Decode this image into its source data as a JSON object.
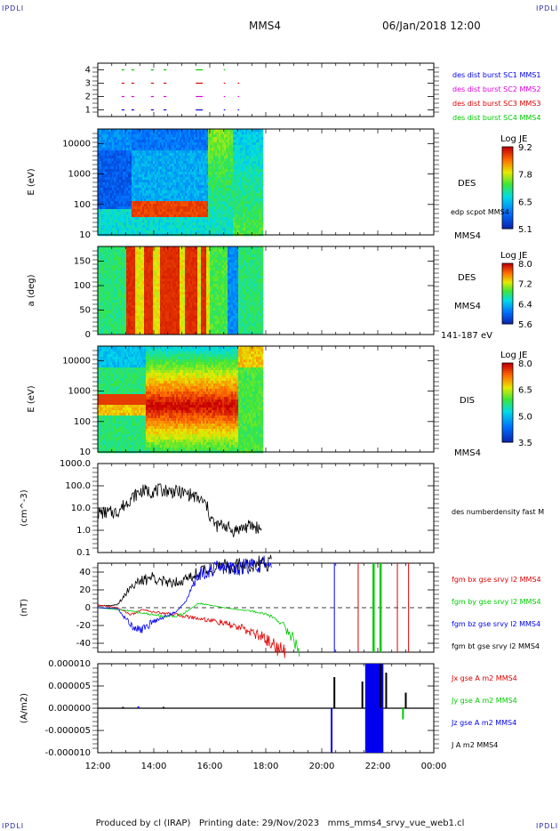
{
  "header": {
    "corner_tl": "IPDLI",
    "corner_tr": "IPDLI",
    "corner_bl": "IPDLI",
    "corner_br": "IPDLI",
    "spacecraft": "MMS4",
    "datetime": "06/Jan/2018 12:00"
  },
  "footer": {
    "produced_by": "Produced by cl (IRAP)",
    "printing_date": "Printing date: 29/Nov/2023",
    "filename": "mms_mms4_srvy_vue_web1.cl"
  },
  "colors": {
    "black": "#000000",
    "red": "#dd0000",
    "green": "#00cc00",
    "blue": "#0000ee",
    "magenta": "#dd00dd"
  },
  "chart_data": [
    {
      "id": "burst",
      "type": "line",
      "ylim": [
        0.5,
        4.5
      ],
      "ticks": [
        1,
        2,
        3,
        4
      ],
      "tick_labels": [
        "1",
        "2",
        "3",
        "4"
      ],
      "legend": [
        {
          "label": "des dist burst SC1 MMS1",
          "color": "#0000ee"
        },
        {
          "label": "des dist burst SC2 MMS2",
          "color": "#dd00dd"
        },
        {
          "label": "des dist burst SC3 MMS3",
          "color": "#dd0000"
        },
        {
          "label": "des dist burst SC4 MMS4",
          "color": "#00cc00"
        }
      ],
      "series": [
        {
          "level": 1,
          "color": "#0000ee",
          "intervals": [
            [
              12.85,
              12.95
            ],
            [
              13.2,
              13.3
            ],
            [
              13.9,
              14.0
            ],
            [
              14.35,
              14.45
            ],
            [
              15.5,
              15.75
            ],
            [
              16.5,
              16.55
            ],
            [
              17.0,
              17.05
            ]
          ]
        },
        {
          "level": 2,
          "color": "#dd00dd",
          "intervals": [
            [
              12.85,
              12.95
            ],
            [
              13.2,
              13.3
            ],
            [
              13.9,
              14.0
            ],
            [
              14.35,
              14.45
            ],
            [
              15.5,
              15.75
            ],
            [
              16.5,
              16.55
            ],
            [
              17.0,
              17.05
            ]
          ]
        },
        {
          "level": 3,
          "color": "#dd0000",
          "intervals": [
            [
              12.85,
              12.95
            ],
            [
              13.2,
              13.3
            ],
            [
              13.9,
              14.0
            ],
            [
              14.35,
              14.45
            ],
            [
              15.5,
              15.75
            ],
            [
              16.5,
              16.55
            ],
            [
              17.0,
              17.05
            ]
          ]
        },
        {
          "level": 4,
          "color": "#00cc00",
          "intervals": [
            [
              12.85,
              12.95
            ],
            [
              13.2,
              13.3
            ],
            [
              13.9,
              14.0
            ],
            [
              14.35,
              14.45
            ],
            [
              15.5,
              15.75
            ],
            [
              16.5,
              16.55
            ]
          ]
        }
      ]
    },
    {
      "id": "des_energy",
      "type": "heatmap",
      "ylabel": "E (eV)",
      "ylog": true,
      "ylim": [
        10,
        30000
      ],
      "tick_labels": [
        "10",
        "100",
        "1000",
        "10000"
      ],
      "data_end_hour": 17.85,
      "side_labels": [
        "DES",
        "edp scpot MMS4"
      ],
      "bottom_label": "MMS4",
      "colorbar": {
        "title": "Log JE",
        "min": 5.1,
        "max": 9.2,
        "tick_labels": [
          "9.2",
          "7.8",
          "6.5",
          "5.1"
        ]
      }
    },
    {
      "id": "des_pitch",
      "type": "heatmap",
      "ylabel": "a (deg)",
      "ylim": [
        0,
        180
      ],
      "tick_labels": [
        "0",
        "50",
        "100",
        "150"
      ],
      "data_end_hour": 17.85,
      "side_labels": [
        "DES",
        "MMS4"
      ],
      "bottom_label": "141-187 eV",
      "colorbar": {
        "title": "Log JE",
        "min": 5.6,
        "max": 8.0,
        "tick_labels": [
          "8.0",
          "7.2",
          "6.4",
          "5.6"
        ]
      }
    },
    {
      "id": "dis_energy",
      "type": "heatmap",
      "ylabel": "E (eV)",
      "ylog": true,
      "ylim": [
        10,
        30000
      ],
      "tick_labels": [
        "10",
        "100",
        "1000",
        "10000"
      ],
      "data_end_hour": 17.85,
      "side_labels": [
        "DIS"
      ],
      "bottom_label": "MMS4",
      "colorbar": {
        "title": "Log JE",
        "min": 3.5,
        "max": 8.0,
        "tick_labels": [
          "8.0",
          "6.5",
          "5.0",
          "3.5"
        ]
      }
    },
    {
      "id": "density",
      "type": "line",
      "ylabel": "(cm^-3)",
      "ylog": true,
      "ylim": [
        0.1,
        1000
      ],
      "tick_labels": [
        "0.1",
        "1.0",
        "10.0",
        "100.0",
        "1000.0"
      ],
      "legend": [
        {
          "label": "des numberdensity fast M",
          "color": "#000000"
        }
      ],
      "series": [
        {
          "name": "des numberdensity fast M",
          "color": "#000000",
          "x": [
            12.0,
            12.7,
            13.0,
            13.3,
            13.6,
            13.9,
            14.3,
            14.7,
            15.0,
            15.3,
            15.6,
            15.85,
            16.0,
            16.2,
            16.5,
            16.8,
            17.2,
            17.5,
            17.85
          ],
          "y": [
            6.0,
            6.5,
            15,
            35,
            60,
            55,
            65,
            55,
            50,
            40,
            25,
            15,
            4,
            1.5,
            1.8,
            0.9,
            1.3,
            1.6,
            1.1
          ]
        }
      ]
    },
    {
      "id": "fgm",
      "type": "line",
      "ylabel": "(nT)",
      "ylim": [
        -50,
        50
      ],
      "tick_labels": [
        "-40",
        "-20",
        "0",
        "20",
        "40"
      ],
      "legend": [
        {
          "label": "fgm bx gse srvy l2 MMS4",
          "color": "#dd0000"
        },
        {
          "label": "fgm by gse srvy l2 MMS4",
          "color": "#00cc00"
        },
        {
          "label": "fgm bz gse srvy l2 MMS4",
          "color": "#0000ee"
        },
        {
          "label": "fgm bt gse srvy l2 MMS4",
          "color": "#000000"
        }
      ],
      "series": [
        {
          "name": "fgm bt gse srvy l2 MMS4",
          "color": "#000000",
          "x": [
            12.0,
            12.7,
            13.2,
            13.6,
            14.0,
            14.4,
            14.8,
            15.2,
            15.6,
            15.9,
            16.2,
            16.6,
            17.0,
            17.5,
            18.0,
            18.2
          ],
          "y": [
            2,
            3,
            25,
            30,
            35,
            28,
            30,
            32,
            40,
            42,
            45,
            46,
            46,
            48,
            50,
            50
          ]
        },
        {
          "name": "fgm bx gse srvy l2 MMS4",
          "color": "#dd0000",
          "x": [
            12.0,
            12.7,
            13.2,
            13.6,
            14.0,
            14.4,
            14.8,
            15.2,
            15.6,
            16.0,
            16.4,
            16.8,
            17.2,
            17.6,
            18.0,
            18.3,
            18.6,
            18.7
          ],
          "y": [
            3,
            0,
            -8,
            -2,
            -5,
            -6,
            -8,
            -10,
            -12,
            -14,
            -17,
            -20,
            -24,
            -29,
            -35,
            -42,
            -50,
            -50
          ]
        },
        {
          "name": "fgm by gse srvy l2 MMS4",
          "color": "#00cc00",
          "x": [
            12.0,
            13.0,
            13.6,
            14.0,
            14.5,
            15.0,
            15.6,
            16.0,
            16.5,
            17.0,
            17.5,
            18.0,
            18.5,
            19.0,
            19.2
          ],
          "y": [
            0,
            -3,
            -6,
            -8,
            -10,
            -8,
            5,
            3,
            0,
            -2,
            -4,
            -7,
            -15,
            -35,
            -50
          ]
        },
        {
          "name": "fgm bz gse srvy l2 MMS4",
          "color": "#0000ee",
          "x": [
            12.0,
            12.7,
            13.2,
            13.6,
            14.0,
            14.4,
            14.8,
            15.2,
            15.6,
            15.9,
            16.2,
            16.6,
            17.0,
            17.5,
            18.0,
            18.2
          ],
          "y": [
            0,
            -1,
            -20,
            -25,
            -15,
            -10,
            -5,
            10,
            38,
            41,
            44,
            45,
            45,
            47,
            49,
            50
          ]
        }
      ],
      "vertical_lines": [
        {
          "hour": 20.45,
          "color": "#0000ee"
        },
        {
          "hour": 21.3,
          "color": "#dd0000"
        },
        {
          "hour": 21.85,
          "color": "#00cc00"
        },
        {
          "hour": 22.1,
          "color": "#00cc00"
        },
        {
          "hour": 22.7,
          "color": "#dd0000"
        },
        {
          "hour": 23.1,
          "color": "#dd0000"
        }
      ],
      "zero_line": true
    },
    {
      "id": "current",
      "type": "line",
      "ylabel": "(A/m2)",
      "ylim": [
        -1e-05,
        1e-05
      ],
      "tick_labels": [
        "-0.000010",
        "-0.000005",
        "0.000000",
        "0.000005",
        "0.000010"
      ],
      "legend": [
        {
          "label": "Jx gse A m2 MMS4",
          "color": "#dd0000"
        },
        {
          "label": "Jy gse A m2 MMS4",
          "color": "#00cc00"
        },
        {
          "label": "Jz gse A m2 MMS4",
          "color": "#0000ee"
        },
        {
          "label": "J A m2 MMS4",
          "color": "#000000"
        }
      ],
      "spikes": [
        {
          "hour": 12.9,
          "amp": 3e-07,
          "color": "#000000"
        },
        {
          "hour": 13.45,
          "amp": 4e-07,
          "color": "#0000ee"
        },
        {
          "hour": 14.35,
          "amp": 3e-07,
          "color": "#000000"
        },
        {
          "hour": 20.35,
          "amp": -1e-05,
          "color": "#0000ee"
        },
        {
          "hour": 20.45,
          "amp": 7e-06,
          "color": "#000000"
        },
        {
          "hour": 21.45,
          "amp": 6e-06,
          "color": "#000000"
        },
        {
          "hour": 22.1,
          "amp": 1e-05,
          "color": "#000000"
        },
        {
          "hour": 22.3,
          "amp": 8e-06,
          "color": "#000000"
        },
        {
          "hour": 22.9,
          "amp": -2.5e-06,
          "color": "#00cc00"
        },
        {
          "hour": 23.0,
          "amp": 3.5e-06,
          "color": "#000000"
        }
      ],
      "blue_block": [
        21.55,
        22.2
      ]
    }
  ],
  "time_axis": {
    "start_hour": 12,
    "end_hour": 24,
    "tick_labels": [
      "12:00",
      "14:00",
      "16:00",
      "18:00",
      "20:00",
      "22:00",
      "00:00"
    ]
  }
}
